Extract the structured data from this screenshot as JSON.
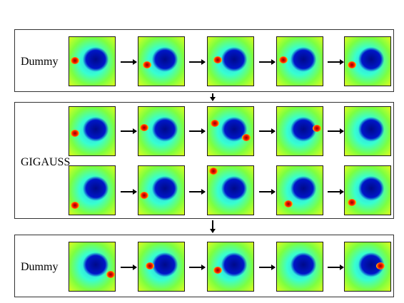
{
  "panels": {
    "top": {
      "label": "Dummy"
    },
    "middle": {
      "label": "GIGAUSS"
    },
    "bottom": {
      "label": "Dummy"
    }
  },
  "colors": {
    "border": "#333333",
    "low": "#000a8a",
    "mid": "#38ffd0",
    "high": "#ff1e00"
  }
}
